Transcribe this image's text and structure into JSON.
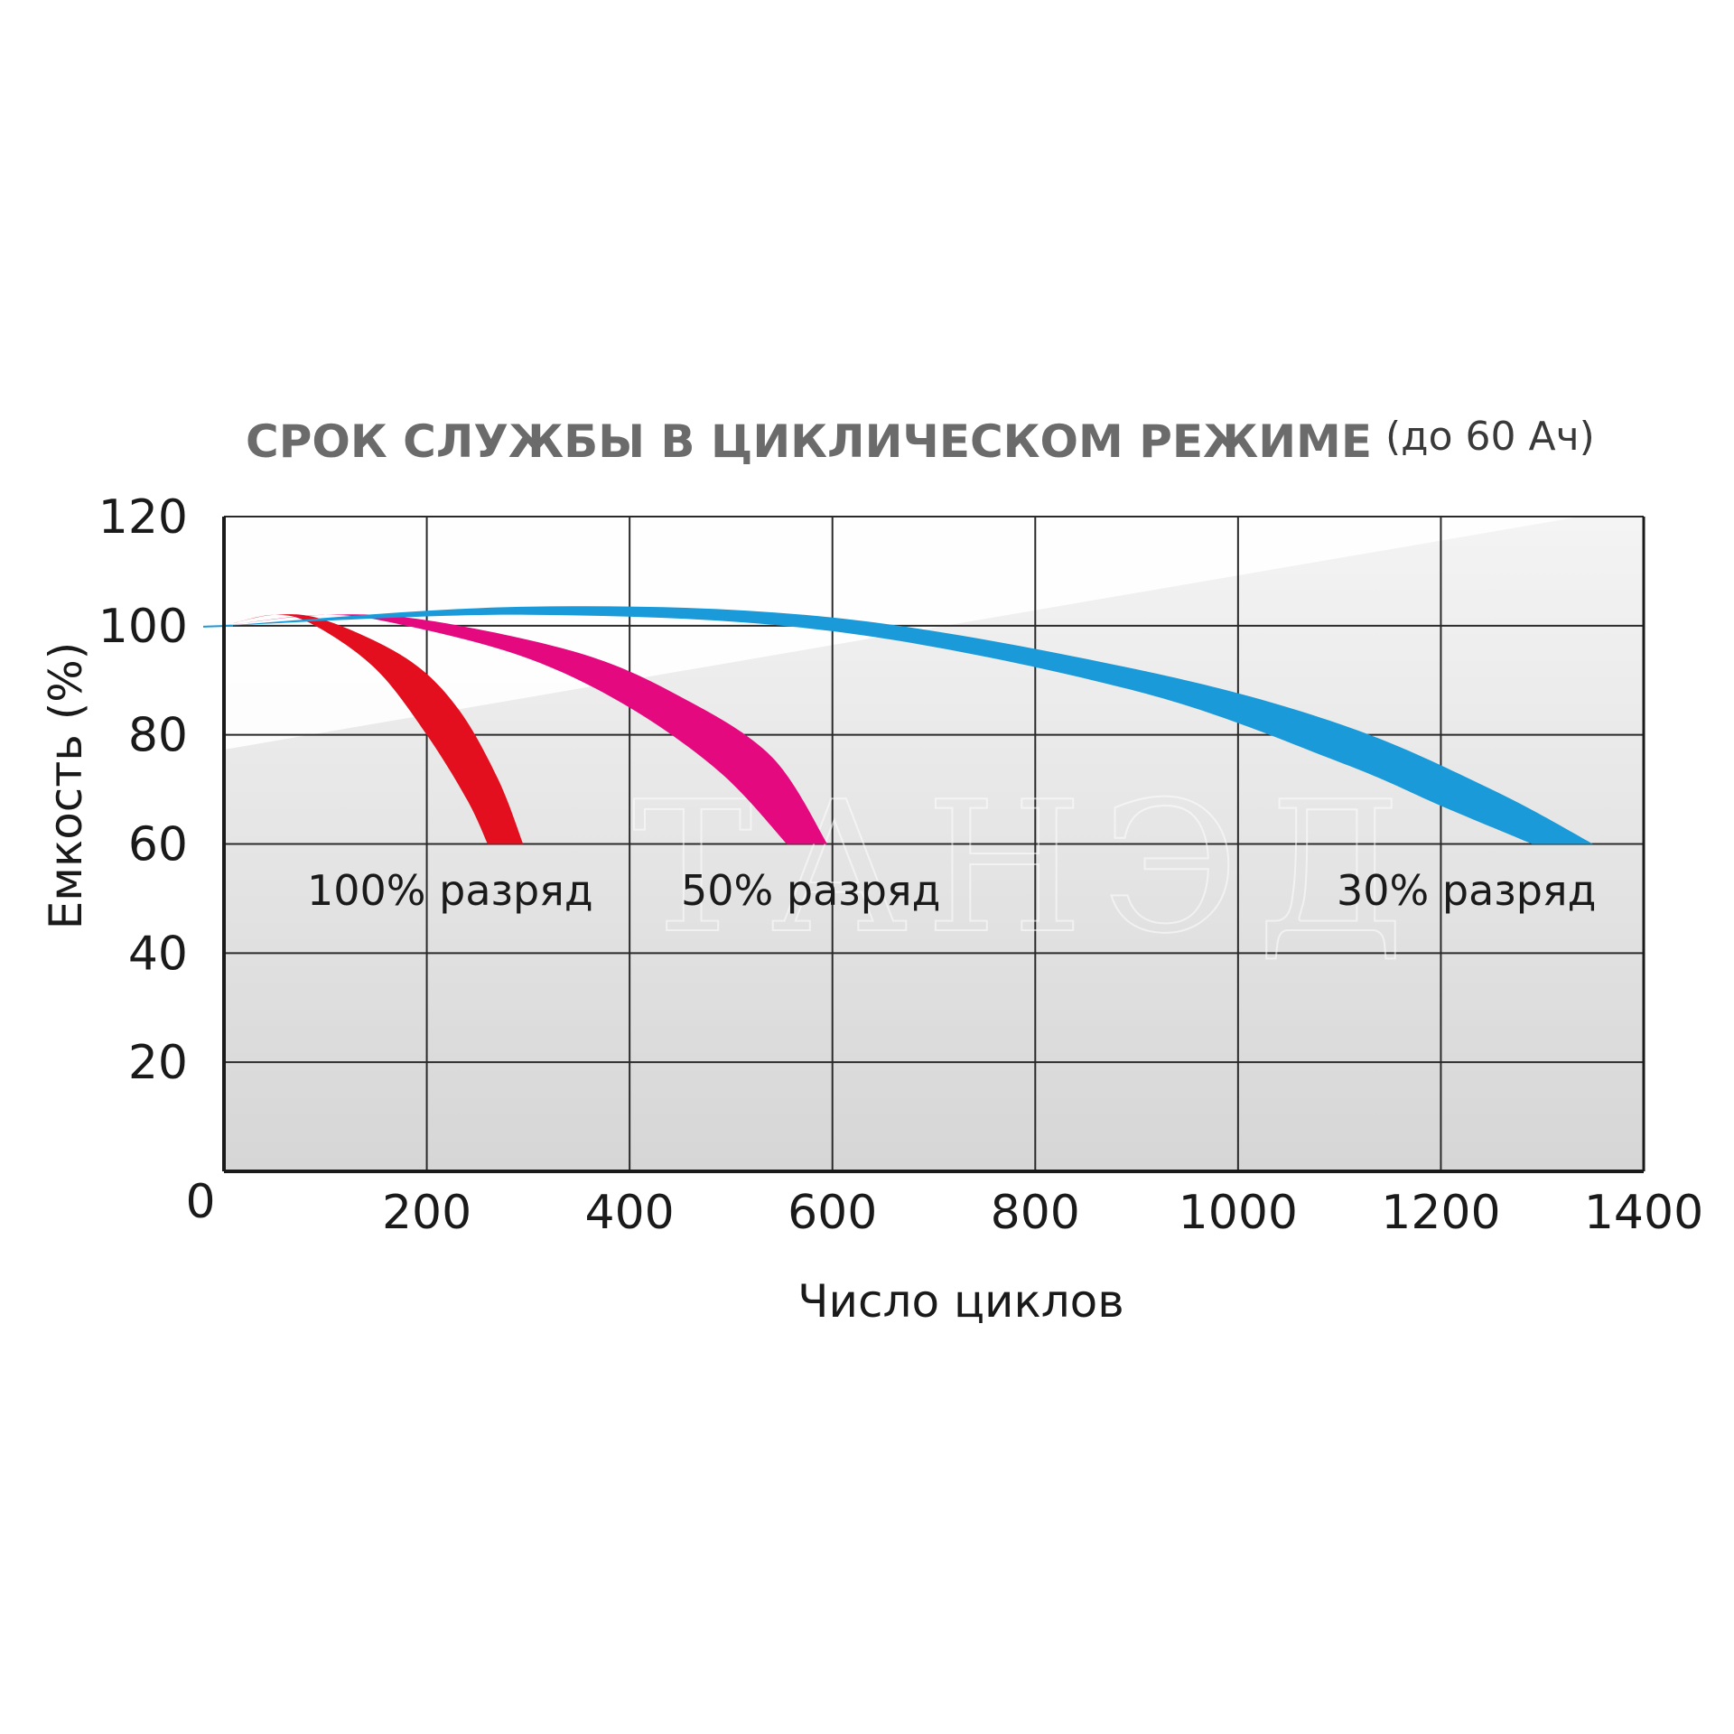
{
  "chart_data": {
    "type": "area",
    "title": "СРОК СЛУЖБЫ В ЦИКЛИЧЕСКОМ РЕЖИМЕ",
    "subtitle": "(до 60 Ач)",
    "xlabel": "Число циклов",
    "ylabel": "Емкость (%)",
    "xlim": [
      0,
      1400
    ],
    "ylim": [
      0,
      120
    ],
    "x_ticks": [
      "0",
      "200",
      "400",
      "600",
      "800",
      "1000",
      "1200",
      "1400"
    ],
    "y_ticks": [
      "20",
      "40",
      "60",
      "80",
      "100",
      "120"
    ],
    "grid": true,
    "series": [
      {
        "name": "100% разряд",
        "color": "#e30e1e",
        "upper": [
          [
            0,
            100
          ],
          [
            50,
            102
          ],
          [
            100,
            101
          ],
          [
            180,
            94
          ],
          [
            230,
            85
          ],
          [
            270,
            72
          ],
          [
            295,
            60
          ]
        ],
        "lower": [
          [
            0,
            100
          ],
          [
            50,
            102
          ],
          [
            90,
            100
          ],
          [
            150,
            92
          ],
          [
            200,
            80
          ],
          [
            240,
            68
          ],
          [
            260,
            60
          ]
        ]
      },
      {
        "name": "50% разряд",
        "color": "#e5097f",
        "upper": [
          [
            0,
            100
          ],
          [
            100,
            102
          ],
          [
            200,
            101
          ],
          [
            350,
            95
          ],
          [
            450,
            87
          ],
          [
            540,
            76
          ],
          [
            595,
            60
          ]
        ],
        "lower": [
          [
            0,
            100
          ],
          [
            100,
            102
          ],
          [
            180,
            100
          ],
          [
            300,
            94
          ],
          [
            400,
            85
          ],
          [
            490,
            73
          ],
          [
            555,
            60
          ]
        ]
      },
      {
        "name": "30% разряд",
        "color": "#1a9ad8",
        "upper": [
          [
            0,
            100
          ],
          [
            300,
            103.5
          ],
          [
            600,
            101.5
          ],
          [
            900,
            92
          ],
          [
            1100,
            82
          ],
          [
            1250,
            70
          ],
          [
            1350,
            60
          ]
        ],
        "lower": [
          [
            0,
            100
          ],
          [
            300,
            102
          ],
          [
            600,
            99
          ],
          [
            900,
            88
          ],
          [
            1100,
            75
          ],
          [
            1200,
            67
          ],
          [
            1290,
            60
          ]
        ]
      }
    ],
    "series_labels": [
      "100% разряд",
      "50% разряд",
      "30% разряд"
    ],
    "watermark": "ТАНЭД"
  }
}
